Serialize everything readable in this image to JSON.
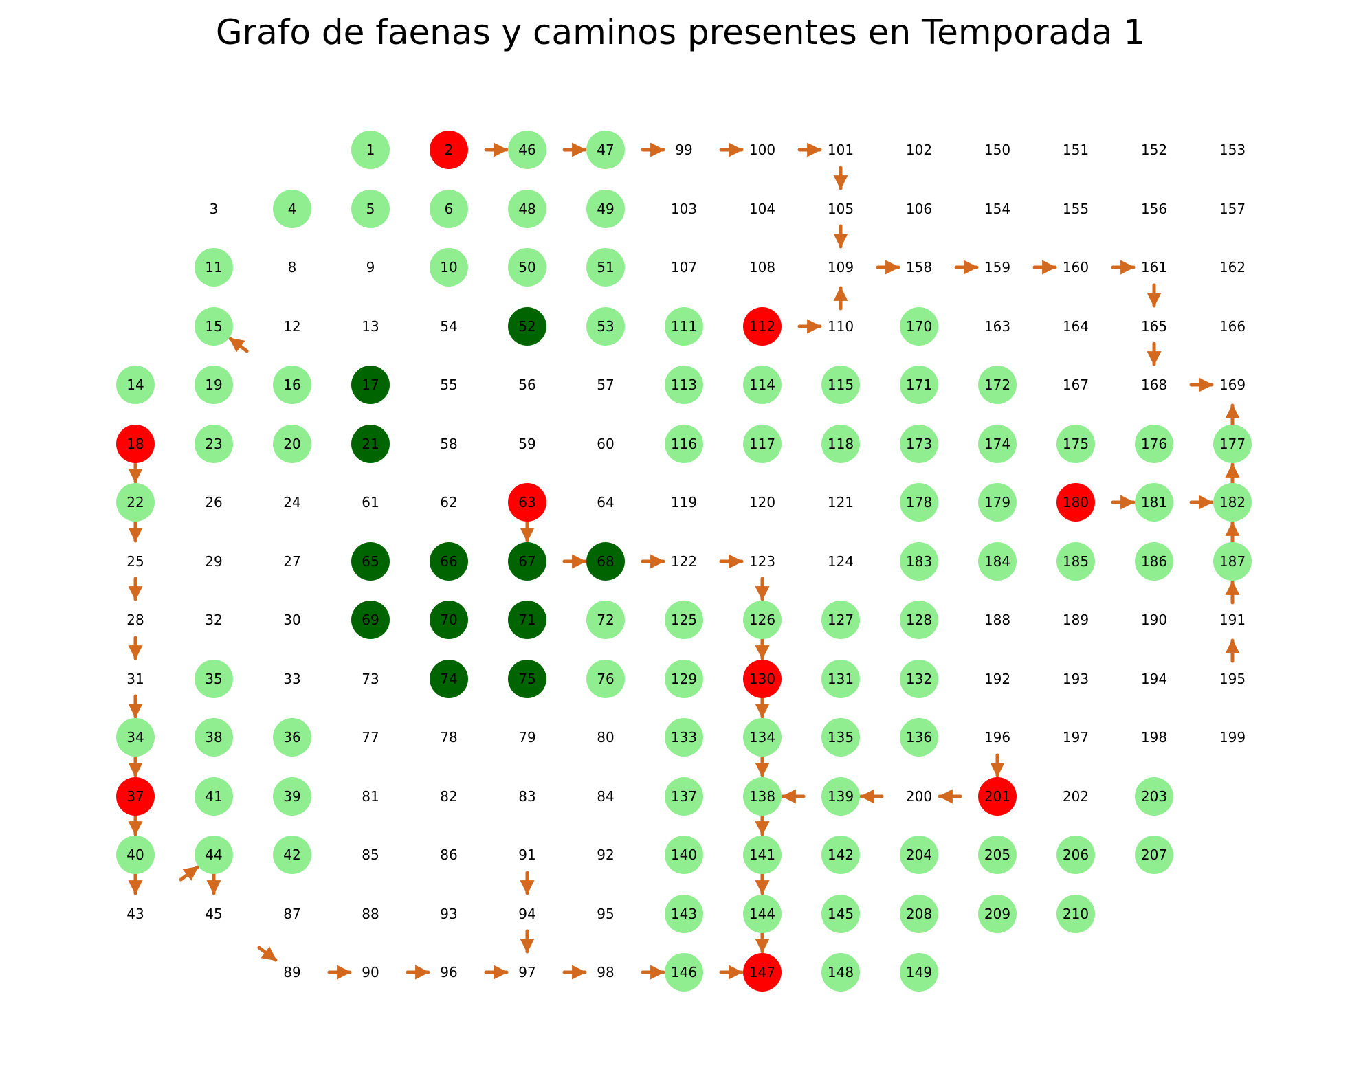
{
  "title": "Grafo de faenas y caminos presentes en Temporada 1",
  "colors": {
    "light_green": "#90ee90",
    "dark_green": "#006400",
    "red": "#ff0000",
    "edge": "#d2691e",
    "label": "#000000"
  },
  "grid": {
    "col1": [
      14,
      18,
      22,
      25,
      28,
      31,
      34,
      37,
      40,
      43
    ],
    "col2": [
      3,
      11,
      15,
      19,
      23,
      26,
      29,
      32,
      35,
      38,
      41,
      44,
      45
    ],
    "col3": [
      4,
      8,
      12,
      16,
      20,
      24,
      27,
      30,
      33,
      36,
      39,
      42,
      87,
      89
    ],
    "col4": [
      1,
      5,
      9,
      13,
      17,
      21,
      61,
      65,
      69,
      73,
      77,
      81,
      85,
      88,
      90
    ],
    "col5": [
      2,
      6,
      10,
      54,
      55,
      58,
      62,
      66,
      70,
      74,
      78,
      82,
      86,
      93,
      96
    ],
    "col6": [
      46,
      48,
      50,
      52,
      56,
      59,
      63,
      67,
      71,
      75,
      79,
      83,
      91,
      94,
      97
    ],
    "col7": [
      47,
      49,
      51,
      53,
      57,
      60,
      64,
      68,
      72,
      76,
      80,
      84,
      92,
      95,
      98
    ],
    "col8": [
      99,
      103,
      107,
      111,
      113,
      116,
      119,
      122,
      125,
      129,
      133,
      137,
      140,
      143,
      146
    ],
    "col9": [
      100,
      104,
      108,
      112,
      114,
      117,
      120,
      123,
      126,
      130,
      134,
      138,
      141,
      144,
      147
    ],
    "col10": [
      101,
      105,
      109,
      110,
      115,
      118,
      121,
      124,
      127,
      131,
      135,
      139,
      142,
      145,
      148
    ],
    "col11": [
      102,
      106,
      158,
      170,
      171,
      173,
      178,
      183,
      128,
      132,
      136,
      200,
      204,
      208,
      149
    ],
    "col12": [
      150,
      154,
      159,
      163,
      172,
      174,
      179,
      184,
      188,
      192,
      196,
      201,
      205,
      209
    ],
    "col13": [
      151,
      155,
      160,
      164,
      167,
      175,
      180,
      185,
      189,
      193,
      197,
      202,
      206,
      210
    ],
    "col14": [
      152,
      156,
      161,
      165,
      168,
      176,
      181,
      186,
      190,
      194,
      198,
      203,
      207
    ],
    "col15": [
      153,
      157,
      162,
      166,
      169,
      177,
      182,
      187,
      191,
      195,
      199
    ]
  },
  "node_status": {
    "light_green": [
      1,
      46,
      47,
      4,
      5,
      6,
      48,
      49,
      10,
      50,
      51,
      11,
      53,
      111,
      170,
      14,
      15,
      16,
      113,
      114,
      115,
      171,
      172,
      19,
      20,
      116,
      117,
      118,
      173,
      174,
      175,
      176,
      177,
      22,
      23,
      178,
      179,
      181,
      182,
      183,
      184,
      185,
      186,
      187,
      72,
      125,
      126,
      127,
      128,
      76,
      129,
      131,
      132,
      34,
      35,
      36,
      133,
      134,
      135,
      136,
      38,
      39,
      137,
      138,
      139,
      203,
      40,
      41,
      42,
      140,
      141,
      142,
      204,
      205,
      206,
      207,
      44,
      143,
      144,
      145,
      208,
      209,
      210,
      146,
      148,
      149
    ],
    "dark_green": [
      52,
      17,
      21,
      65,
      66,
      67,
      68,
      69,
      70,
      71,
      74,
      75
    ],
    "red": [
      2,
      112,
      18,
      63,
      180,
      130,
      37,
      201,
      147
    ]
  },
  "edges": [
    [
      2,
      46
    ],
    [
      46,
      47
    ],
    [
      47,
      99
    ],
    [
      99,
      100
    ],
    [
      100,
      101
    ],
    [
      101,
      105
    ],
    [
      105,
      109
    ],
    [
      109,
      158
    ],
    [
      158,
      159
    ],
    [
      159,
      160
    ],
    [
      160,
      161
    ],
    [
      161,
      165
    ],
    [
      165,
      168
    ],
    [
      168,
      169
    ],
    [
      112,
      110
    ],
    [
      110,
      109
    ],
    [
      16,
      15
    ],
    [
      177,
      169
    ],
    [
      182,
      177
    ],
    [
      187,
      182
    ],
    [
      191,
      187
    ],
    [
      195,
      191
    ],
    [
      180,
      181
    ],
    [
      181,
      182
    ],
    [
      18,
      22
    ],
    [
      22,
      25
    ],
    [
      25,
      28
    ],
    [
      28,
      31
    ],
    [
      31,
      34
    ],
    [
      34,
      37
    ],
    [
      37,
      40
    ],
    [
      40,
      43
    ],
    [
      43,
      44
    ],
    [
      44,
      45
    ],
    [
      45,
      89
    ],
    [
      89,
      90
    ],
    [
      90,
      96
    ],
    [
      96,
      97
    ],
    [
      97,
      98
    ],
    [
      98,
      146
    ],
    [
      146,
      147
    ],
    [
      63,
      67
    ],
    [
      67,
      68
    ],
    [
      68,
      122
    ],
    [
      122,
      123
    ],
    [
      123,
      126
    ],
    [
      126,
      130
    ],
    [
      130,
      134
    ],
    [
      134,
      138
    ],
    [
      138,
      141
    ],
    [
      141,
      144
    ],
    [
      144,
      147
    ],
    [
      91,
      94
    ],
    [
      94,
      97
    ],
    [
      196,
      201
    ],
    [
      201,
      200
    ],
    [
      200,
      139
    ],
    [
      139,
      138
    ]
  ]
}
